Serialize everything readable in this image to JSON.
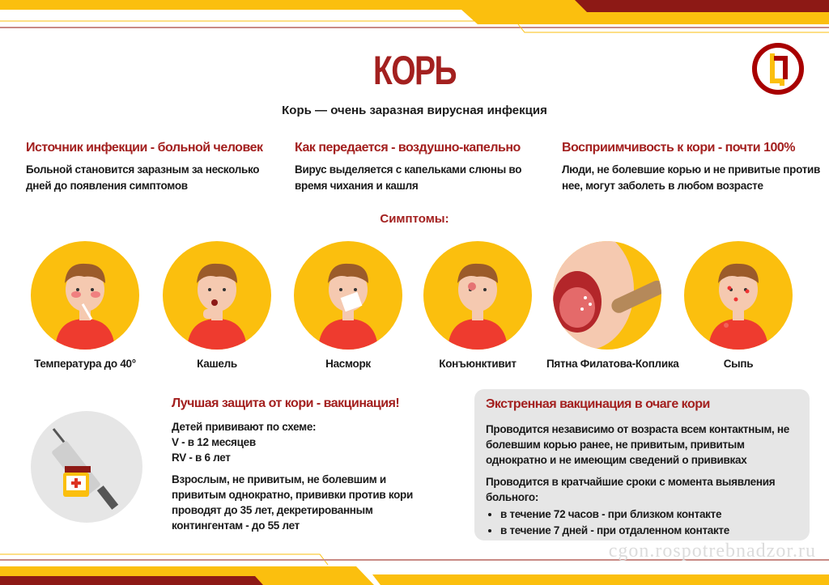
{
  "header": {
    "title": "КОРЬ",
    "subtitle": "Корь — очень заразная вирусная инфекция"
  },
  "colors": {
    "accent_red": "#a3201f",
    "dark_red": "#8d1915",
    "yellow": "#fbbf0e",
    "panel_gray": "#e6e6e6"
  },
  "info_columns": [
    {
      "title": "Источник инфекции - больной человек",
      "text": "Больной становится заразным за несколько дней до появления симптомов"
    },
    {
      "title": "Как передается - воздушно-капельно",
      "text": "Вирус выделяется с капельками слюны во время чихания и кашля"
    },
    {
      "title": "Восприимчивость к кори - почти 100%",
      "text": "Люди, не болевшие корью и не привитые против нее, могут заболеть в любом возрасте"
    }
  ],
  "symptoms": {
    "title": "Симптомы:",
    "items": [
      {
        "label": "Температура до 40°",
        "icon": "fever-child-icon"
      },
      {
        "label": "Кашель",
        "icon": "cough-child-icon"
      },
      {
        "label": "Насморк",
        "icon": "runny-nose-child-icon"
      },
      {
        "label": "Конъюнктивит",
        "icon": "conjunctivitis-child-icon"
      },
      {
        "label": "Пятна Филатова-Коплика",
        "icon": "mouth-spots-icon"
      },
      {
        "label": "Сыпь",
        "icon": "rash-child-icon"
      }
    ]
  },
  "vaccination": {
    "title": "Лучшая защита от кори - вакцинация!",
    "lines": [
      "Детей прививают по схеме:",
      "V - в 12 месяцев",
      "RV - в 6 лет"
    ],
    "adults": "Взрослым, не привитым, не болевшим и привитым однократно, прививки против кори проводят до 35 лет, декретированным контингентам - до 55 лет",
    "icon": "syringe-vaccine-icon"
  },
  "emergency": {
    "title": "Экстренная вакцинация в очаге кори",
    "p1": "Проводится независимо от возраста всем контактным, не болевшим корью ранее, не привитым, привитым однократно и не имеющим сведений о прививках",
    "p2": "Проводится в кратчайшие сроки с момента выявления больного:",
    "bullets": [
      "в течение 72 часов - при близком контакте",
      "в течение 7 дней - при отдаленном контакте"
    ]
  },
  "watermark": "cgon.rospotrebnadzor.ru"
}
